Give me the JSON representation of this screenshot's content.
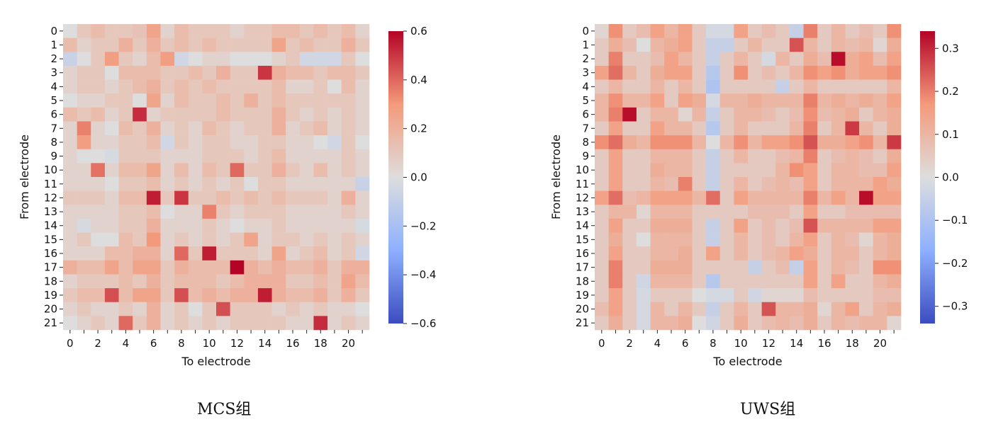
{
  "chart_data": [
    {
      "type": "heatmap",
      "caption": "MCS组",
      "xlabel": "To electrode",
      "ylabel": "From electrode",
      "colormap": "coolwarm",
      "vmin": -0.6,
      "vmax": 0.6,
      "x_ticks": [
        "0",
        "2",
        "4",
        "6",
        "8",
        "10",
        "12",
        "14",
        "16",
        "18",
        "20"
      ],
      "y_ticks": [
        "0",
        "1",
        "2",
        "3",
        "4",
        "5",
        "6",
        "7",
        "8",
        "9",
        "10",
        "11",
        "12",
        "13",
        "14",
        "15",
        "16",
        "17",
        "18",
        "19",
        "20",
        "21"
      ],
      "colorbar_ticks": [
        "0.6",
        "0.4",
        "0.2",
        "0.0",
        "−0.2",
        "−0.4",
        "−0.6"
      ],
      "colorbar_tick_values": [
        0.6,
        0.4,
        0.2,
        0.0,
        -0.2,
        -0.4,
        -0.6
      ],
      "matrix": [
        [
          0.0,
          0.1,
          0.15,
          0.1,
          0.1,
          0.12,
          0.25,
          0.05,
          0.15,
          0.1,
          0.1,
          0.1,
          0.05,
          0.1,
          0.1,
          0.15,
          0.15,
          0.1,
          0.15,
          0.1,
          0.15,
          0.05
        ],
        [
          0.15,
          0.05,
          0.1,
          0.1,
          0.2,
          0.1,
          0.2,
          0.1,
          0.15,
          0.1,
          0.15,
          0.1,
          0.1,
          0.1,
          0.1,
          0.25,
          0.1,
          0.15,
          0.1,
          0.1,
          0.2,
          0.1
        ],
        [
          -0.08,
          0.0,
          0.1,
          0.28,
          0.1,
          0.05,
          0.15,
          0.28,
          -0.05,
          0.0,
          0.05,
          0.05,
          0.0,
          0.0,
          0.0,
          0.05,
          0.1,
          -0.05,
          -0.05,
          -0.05,
          0.1,
          0.0
        ],
        [
          0.05,
          0.1,
          0.1,
          0.0,
          0.15,
          0.15,
          0.15,
          0.1,
          0.1,
          0.15,
          0.1,
          0.2,
          0.1,
          0.1,
          0.5,
          0.2,
          0.15,
          0.15,
          0.1,
          0.15,
          0.15,
          0.1
        ],
        [
          0.05,
          0.1,
          0.1,
          0.05,
          0.1,
          0.15,
          0.2,
          0.1,
          0.15,
          0.1,
          0.15,
          0.1,
          0.1,
          0.1,
          0.1,
          0.15,
          0.05,
          0.05,
          0.1,
          0.0,
          0.15,
          0.05
        ],
        [
          0.0,
          0.05,
          0.05,
          0.1,
          0.1,
          0.0,
          0.25,
          0.05,
          0.15,
          0.1,
          0.1,
          0.15,
          0.1,
          0.2,
          0.1,
          0.15,
          0.1,
          0.1,
          0.1,
          0.1,
          0.1,
          0.05
        ],
        [
          0.15,
          0.1,
          0.15,
          0.05,
          0.1,
          0.52,
          0.05,
          0.1,
          0.1,
          0.1,
          0.1,
          0.15,
          0.1,
          0.1,
          0.1,
          0.2,
          0.1,
          0.05,
          0.1,
          0.05,
          0.1,
          0.05
        ],
        [
          0.05,
          0.35,
          0.05,
          0.0,
          0.15,
          0.1,
          0.2,
          0.05,
          0.1,
          0.05,
          0.15,
          0.1,
          0.05,
          0.1,
          0.1,
          0.2,
          0.05,
          0.1,
          0.15,
          0.05,
          0.1,
          0.05
        ],
        [
          0.05,
          0.28,
          0.05,
          0.05,
          0.1,
          0.1,
          0.15,
          -0.05,
          0.1,
          0.05,
          0.1,
          0.1,
          0.05,
          0.05,
          0.1,
          0.1,
          0.05,
          0.05,
          0.0,
          -0.05,
          0.1,
          0.0
        ],
        [
          0.05,
          0.0,
          0.0,
          -0.03,
          0.1,
          0.1,
          0.1,
          0.05,
          0.05,
          0.05,
          0.1,
          0.1,
          0.1,
          0.05,
          0.1,
          0.15,
          0.05,
          0.05,
          0.05,
          0.05,
          0.1,
          0.05
        ],
        [
          0.05,
          0.05,
          0.38,
          0.05,
          0.15,
          0.15,
          0.25,
          0.05,
          0.15,
          0.05,
          0.15,
          0.1,
          0.4,
          0.1,
          0.1,
          0.2,
          0.1,
          0.05,
          0.15,
          0.05,
          0.1,
          0.05
        ],
        [
          0.05,
          0.05,
          0.05,
          0.0,
          0.1,
          0.1,
          0.15,
          0.05,
          0.1,
          0.05,
          0.1,
          0.05,
          0.1,
          0.0,
          0.1,
          0.1,
          0.05,
          0.05,
          0.05,
          0.05,
          0.05,
          -0.08
        ],
        [
          0.1,
          0.1,
          0.1,
          0.05,
          0.15,
          0.15,
          0.55,
          0.1,
          0.5,
          0.1,
          0.1,
          0.15,
          0.1,
          0.15,
          0.1,
          0.15,
          0.1,
          0.1,
          0.1,
          0.05,
          0.2,
          0.05
        ],
        [
          0.05,
          0.05,
          0.05,
          0.05,
          0.1,
          0.1,
          0.15,
          0.0,
          0.05,
          0.05,
          0.35,
          0.1,
          0.05,
          0.1,
          0.1,
          0.1,
          0.05,
          0.05,
          0.05,
          0.05,
          0.1,
          0.05
        ],
        [
          0.05,
          -0.03,
          0.05,
          0.05,
          0.1,
          0.1,
          0.2,
          0.05,
          0.05,
          0.05,
          0.1,
          0.05,
          0.0,
          0.05,
          0.05,
          0.1,
          0.05,
          0.05,
          0.05,
          0.05,
          0.05,
          -0.03
        ],
        [
          0.05,
          0.1,
          0.0,
          0.0,
          0.15,
          0.1,
          0.3,
          0.05,
          0.1,
          0.05,
          0.1,
          0.05,
          0.1,
          0.25,
          0.05,
          0.1,
          0.1,
          0.05,
          0.1,
          0.05,
          0.1,
          0.05
        ],
        [
          0.05,
          0.05,
          0.05,
          0.15,
          0.15,
          0.2,
          0.2,
          0.05,
          0.4,
          0.1,
          0.55,
          0.1,
          0.1,
          0.1,
          0.05,
          0.25,
          0.05,
          0.1,
          0.15,
          0.05,
          0.1,
          -0.05
        ],
        [
          0.2,
          0.15,
          0.15,
          0.25,
          0.15,
          0.25,
          0.25,
          0.1,
          0.2,
          0.15,
          0.15,
          0.15,
          0.6,
          0.2,
          0.15,
          0.2,
          0.15,
          0.15,
          0.2,
          0.1,
          0.2,
          0.2
        ],
        [
          0.05,
          0.1,
          0.1,
          0.1,
          0.15,
          0.1,
          0.2,
          0.1,
          0.15,
          0.15,
          0.15,
          0.1,
          0.15,
          0.2,
          0.2,
          0.2,
          0.1,
          0.1,
          0.15,
          0.1,
          0.25,
          0.15
        ],
        [
          0.1,
          0.15,
          0.15,
          0.45,
          0.15,
          0.25,
          0.25,
          0.1,
          0.45,
          0.15,
          0.2,
          0.15,
          0.2,
          0.2,
          0.55,
          0.2,
          0.15,
          0.15,
          0.2,
          0.1,
          0.2,
          0.1
        ],
        [
          0.05,
          0.1,
          0.05,
          0.05,
          0.1,
          0.05,
          0.2,
          0.05,
          0.1,
          0.0,
          0.1,
          0.45,
          0.1,
          0.1,
          0.1,
          0.05,
          0.1,
          0.05,
          0.1,
          0.05,
          0.05,
          0.0
        ],
        [
          0.0,
          0.05,
          0.1,
          0.05,
          0.4,
          0.1,
          0.2,
          0.05,
          0.1,
          0.05,
          0.1,
          0.05,
          0.1,
          0.1,
          0.1,
          0.1,
          0.05,
          0.05,
          0.52,
          0.05,
          0.1,
          0.05
        ]
      ]
    },
    {
      "type": "heatmap",
      "caption": "UWS组",
      "xlabel": "To electrode",
      "ylabel": "From electrode",
      "colormap": "coolwarm",
      "vmin": -0.34,
      "vmax": 0.34,
      "x_ticks": [
        "0",
        "2",
        "4",
        "6",
        "8",
        "10",
        "12",
        "14",
        "16",
        "18",
        "20"
      ],
      "y_ticks": [
        "0",
        "1",
        "2",
        "3",
        "4",
        "5",
        "6",
        "7",
        "8",
        "9",
        "10",
        "11",
        "12",
        "13",
        "14",
        "15",
        "16",
        "17",
        "18",
        "19",
        "20",
        "21"
      ],
      "colorbar_ticks": [
        "0.3",
        "0.2",
        "0.1",
        "0.0",
        "−0.1",
        "−0.2",
        "−0.3"
      ],
      "colorbar_tick_values": [
        0.3,
        0.2,
        0.1,
        0.0,
        -0.1,
        -0.2,
        -0.3
      ],
      "matrix": [
        [
          0.02,
          0.18,
          0.05,
          0.08,
          0.15,
          0.1,
          0.15,
          0.05,
          -0.02,
          -0.02,
          0.15,
          0.05,
          0.08,
          0.05,
          -0.05,
          0.2,
          0.05,
          0.1,
          0.05,
          0.08,
          0.05,
          0.18
        ],
        [
          0.05,
          0.12,
          0.08,
          0.0,
          0.1,
          0.12,
          0.15,
          0.05,
          -0.05,
          -0.05,
          0.05,
          0.1,
          0.05,
          0.05,
          0.25,
          0.1,
          0.05,
          0.1,
          0.08,
          0.1,
          0.02,
          0.12
        ],
        [
          0.05,
          0.2,
          0.05,
          0.05,
          0.08,
          0.15,
          0.1,
          0.05,
          -0.05,
          0.05,
          0.1,
          0.05,
          -0.02,
          0.1,
          0.05,
          0.12,
          0.08,
          0.33,
          0.12,
          0.15,
          0.08,
          0.15
        ],
        [
          0.15,
          0.22,
          0.1,
          0.05,
          0.12,
          0.15,
          0.15,
          0.05,
          -0.08,
          0.05,
          0.18,
          0.05,
          0.08,
          0.05,
          0.1,
          0.18,
          0.15,
          0.18,
          0.12,
          0.15,
          0.15,
          0.18
        ],
        [
          0.05,
          0.1,
          0.05,
          0.05,
          0.1,
          0.05,
          0.1,
          0.05,
          -0.1,
          0.05,
          0.05,
          0.05,
          0.05,
          -0.05,
          0.05,
          0.1,
          0.05,
          0.05,
          0.05,
          0.05,
          0.05,
          0.1
        ],
        [
          0.1,
          0.18,
          0.1,
          0.1,
          0.15,
          0.05,
          0.15,
          0.12,
          -0.02,
          0.1,
          0.1,
          0.12,
          0.1,
          0.1,
          0.1,
          0.2,
          0.1,
          0.12,
          0.1,
          0.12,
          0.1,
          0.15
        ],
        [
          0.1,
          0.2,
          0.33,
          0.05,
          0.1,
          0.1,
          0.02,
          0.1,
          -0.05,
          0.05,
          0.1,
          0.1,
          0.08,
          0.05,
          0.08,
          0.18,
          0.08,
          0.1,
          0.12,
          0.05,
          0.1,
          0.12
        ],
        [
          0.05,
          0.15,
          0.05,
          0.05,
          0.15,
          0.1,
          0.1,
          0.05,
          -0.08,
          0.05,
          0.1,
          0.05,
          0.05,
          0.05,
          0.1,
          0.2,
          0.05,
          0.1,
          0.28,
          0.1,
          0.05,
          0.12
        ],
        [
          0.18,
          0.22,
          0.12,
          0.1,
          0.18,
          0.18,
          0.18,
          0.1,
          0.0,
          0.1,
          0.18,
          0.1,
          0.15,
          0.15,
          0.18,
          0.25,
          0.12,
          0.12,
          0.15,
          0.18,
          0.1,
          0.28
        ],
        [
          0.05,
          0.15,
          0.05,
          0.05,
          0.1,
          0.1,
          0.1,
          0.05,
          -0.05,
          0.05,
          0.1,
          0.05,
          0.05,
          0.08,
          0.1,
          0.2,
          0.05,
          0.08,
          0.1,
          0.08,
          0.05,
          0.12
        ],
        [
          0.05,
          0.15,
          0.05,
          0.05,
          0.12,
          0.1,
          0.1,
          0.05,
          -0.05,
          0.05,
          0.05,
          0.05,
          0.05,
          0.1,
          0.18,
          0.15,
          0.05,
          0.1,
          0.1,
          0.08,
          0.08,
          0.15
        ],
        [
          0.05,
          0.15,
          0.05,
          0.05,
          0.1,
          0.08,
          0.2,
          0.05,
          -0.05,
          0.05,
          0.1,
          0.05,
          0.08,
          0.1,
          0.08,
          0.15,
          0.05,
          0.1,
          0.1,
          0.1,
          0.15,
          0.12
        ],
        [
          0.15,
          0.22,
          0.08,
          0.1,
          0.15,
          0.15,
          0.15,
          0.1,
          0.22,
          0.05,
          0.15,
          0.1,
          0.1,
          0.1,
          0.1,
          0.2,
          0.1,
          0.15,
          0.1,
          0.33,
          0.15,
          0.15
        ],
        [
          0.05,
          0.1,
          0.1,
          0.02,
          0.1,
          0.1,
          0.1,
          0.05,
          0.05,
          0.05,
          0.05,
          0.08,
          0.08,
          0.08,
          0.05,
          0.15,
          0.05,
          0.05,
          0.08,
          0.08,
          0.08,
          0.08
        ],
        [
          0.05,
          0.15,
          0.05,
          0.05,
          0.12,
          0.12,
          0.12,
          0.05,
          -0.05,
          0.05,
          0.15,
          0.05,
          0.08,
          0.05,
          0.08,
          0.25,
          0.1,
          0.1,
          0.1,
          0.1,
          0.15,
          0.15
        ],
        [
          0.05,
          0.12,
          0.05,
          0.0,
          0.1,
          0.1,
          0.1,
          0.05,
          -0.05,
          0.05,
          0.1,
          0.05,
          0.08,
          0.05,
          0.1,
          0.15,
          0.05,
          0.1,
          0.08,
          0.02,
          0.1,
          0.12
        ],
        [
          0.05,
          0.15,
          0.05,
          0.05,
          0.1,
          0.1,
          0.12,
          0.05,
          0.15,
          0.05,
          0.1,
          0.05,
          0.08,
          0.1,
          0.15,
          0.12,
          0.05,
          0.1,
          0.1,
          0.05,
          0.1,
          0.12
        ],
        [
          0.05,
          0.2,
          0.05,
          0.05,
          0.12,
          0.12,
          0.12,
          0.05,
          0.05,
          0.05,
          0.05,
          -0.05,
          0.05,
          0.08,
          -0.05,
          0.15,
          0.05,
          0.1,
          0.08,
          0.05,
          0.18,
          0.18
        ],
        [
          0.05,
          0.2,
          0.05,
          -0.03,
          0.1,
          0.1,
          0.1,
          0.05,
          -0.08,
          0.05,
          0.05,
          0.05,
          0.05,
          0.05,
          0.05,
          0.15,
          0.05,
          0.15,
          0.05,
          0.05,
          0.1,
          0.12
        ],
        [
          0.05,
          0.15,
          0.05,
          -0.02,
          0.05,
          0.05,
          0.05,
          0.0,
          -0.02,
          -0.02,
          0.05,
          -0.03,
          0.02,
          0.02,
          0.02,
          0.08,
          0.05,
          0.05,
          0.05,
          0.05,
          0.08,
          0.08
        ],
        [
          0.08,
          0.15,
          0.05,
          -0.02,
          0.1,
          0.05,
          0.1,
          0.05,
          -0.05,
          0.05,
          0.1,
          0.05,
          0.25,
          0.1,
          0.1,
          0.12,
          0.02,
          0.1,
          0.15,
          0.05,
          0.1,
          0.12
        ],
        [
          0.05,
          0.12,
          0.05,
          -0.02,
          0.1,
          0.1,
          0.12,
          0.0,
          -0.03,
          0.05,
          0.12,
          0.05,
          0.08,
          0.1,
          0.08,
          0.12,
          0.05,
          0.1,
          0.08,
          0.1,
          0.1,
          0.02
        ]
      ]
    }
  ]
}
